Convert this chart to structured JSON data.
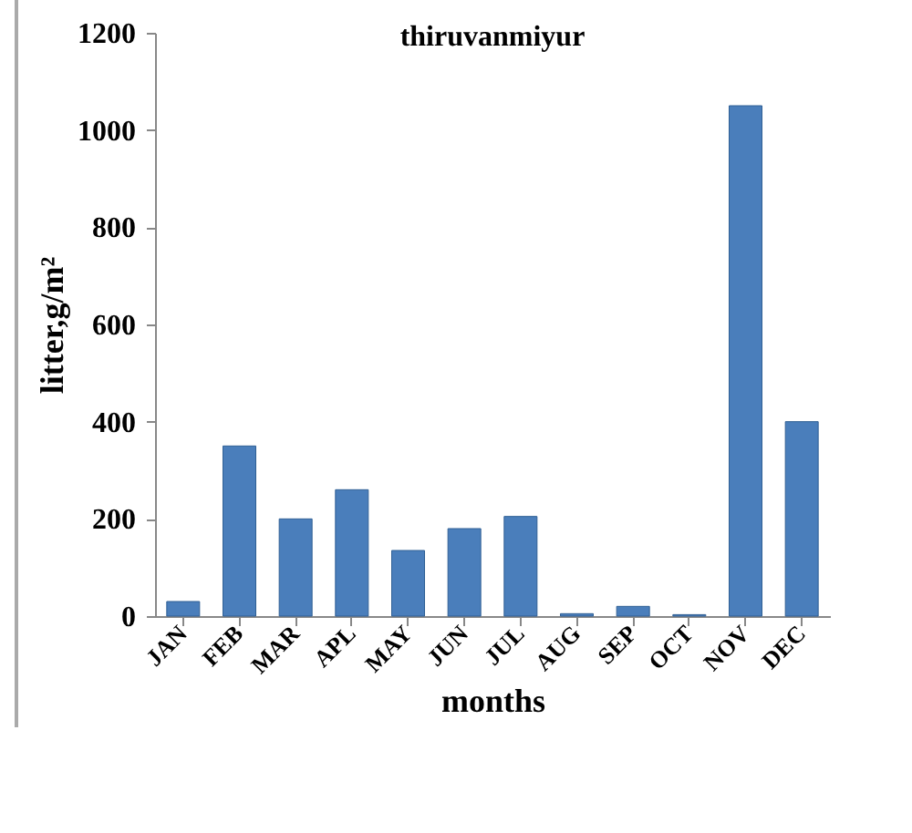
{
  "chart_data": {
    "type": "bar",
    "title": "thiruvanmiyur",
    "xlabel": "months",
    "ylabel": "litter,g/m²",
    "categories": [
      "JAN",
      "FEB",
      "MAR",
      "APL",
      "MAY",
      "JUN",
      "JUL",
      "AUG",
      "SEP",
      "OCT",
      "NOV",
      "DEC"
    ],
    "values": [
      30,
      350,
      200,
      260,
      135,
      180,
      205,
      5,
      20,
      3,
      1050,
      400
    ],
    "color": "#4a7ebb",
    "ylim": [
      0,
      1200
    ],
    "yticks": [
      0,
      200,
      400,
      600,
      800,
      1000,
      1200
    ],
    "grid": false
  }
}
